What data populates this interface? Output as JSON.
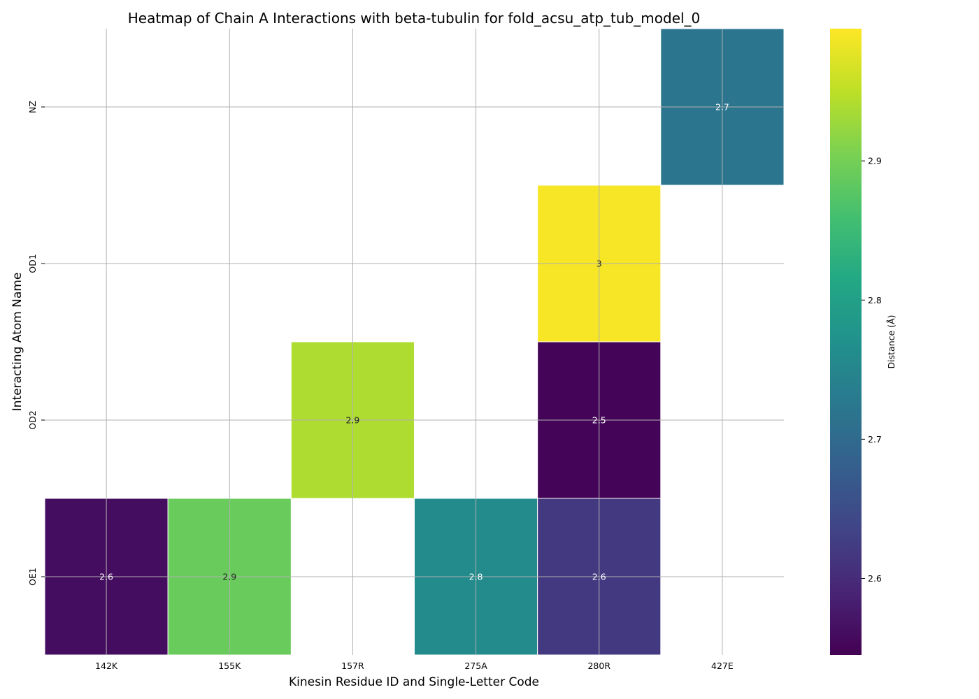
{
  "chart_data": {
    "type": "heatmap",
    "title": "Heatmap of Chain A Interactions with beta-tubulin for fold_acsu_atp_tub_model_0",
    "xlabel": "Kinesin Residue ID and Single-Letter Code",
    "ylabel": "Interacting Atom Name",
    "x_categories": [
      "142K",
      "155K",
      "157R",
      "275A",
      "280R",
      "427E"
    ],
    "y_categories": [
      "NZ",
      "OD1",
      "OD2",
      "OE1"
    ],
    "cells": [
      {
        "x": "427E",
        "y": "NZ",
        "value": 2.72,
        "label": "2.7"
      },
      {
        "x": "280R",
        "y": "OD1",
        "value": 2.99,
        "label": "3"
      },
      {
        "x": "157R",
        "y": "OD2",
        "value": 2.94,
        "label": "2.9"
      },
      {
        "x": "280R",
        "y": "OD2",
        "value": 2.55,
        "label": "2.5"
      },
      {
        "x": "142K",
        "y": "OE1",
        "value": 2.56,
        "label": "2.6"
      },
      {
        "x": "155K",
        "y": "OE1",
        "value": 2.89,
        "label": "2.9"
      },
      {
        "x": "275A",
        "y": "OE1",
        "value": 2.76,
        "label": "2.8"
      },
      {
        "x": "280R",
        "y": "OE1",
        "value": 2.62,
        "label": "2.6"
      }
    ],
    "colorbar": {
      "label": "Distance (Å)",
      "colormap": "viridis",
      "vmin": 2.545,
      "vmax": 2.995,
      "ticks": [
        2.6,
        2.7,
        2.8,
        2.9
      ],
      "tick_labels": [
        "2.6",
        "2.7",
        "2.8",
        "2.9"
      ]
    },
    "grid": true
  }
}
